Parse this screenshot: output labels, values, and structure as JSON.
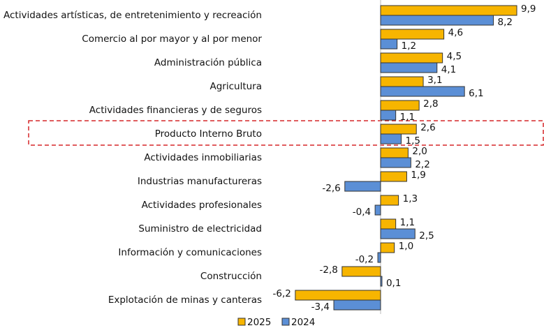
{
  "chart_data": {
    "type": "bar",
    "orientation": "horizontal",
    "categories": [
      "Actividades artísticas, de entretenimiento y recreación",
      "Comercio al por mayor y al por menor",
      "Administración pública",
      "Agricultura",
      "Actividades financieras y de seguros",
      "Producto Interno Bruto",
      "Actividades inmobiliarias",
      "Industrias manufactureras",
      "Actividades profesionales",
      "Suministro de electricidad",
      "Información y comunicaciones",
      "Construcción",
      "Explotación de minas y canteras"
    ],
    "series": [
      {
        "name": "2025",
        "color": "#f7b500",
        "values": [
          9.9,
          4.6,
          4.5,
          3.1,
          2.8,
          2.6,
          2.0,
          1.9,
          1.3,
          1.1,
          1.0,
          -2.8,
          -6.2
        ],
        "value_labels": [
          "9,9",
          "4,6",
          "4,5",
          "3,1",
          "2,8",
          "2,6",
          "2,0",
          "1,9",
          "1,3",
          "1,1",
          "1,0",
          "-2,8",
          "-6,2"
        ]
      },
      {
        "name": "2024",
        "color": "#5b8fd6",
        "values": [
          8.2,
          1.2,
          4.1,
          6.1,
          1.1,
          1.5,
          2.2,
          -2.6,
          -0.4,
          2.5,
          -0.2,
          0.1,
          -3.4
        ],
        "value_labels": [
          "8,2",
          "1,2",
          "4,1",
          "6,1",
          "1,1",
          "1,5",
          "2,2",
          "-2,6",
          "-0,4",
          "2,5",
          "-0,2",
          "0,1",
          "-3,4"
        ]
      }
    ],
    "legend": "bottom"
  }
}
